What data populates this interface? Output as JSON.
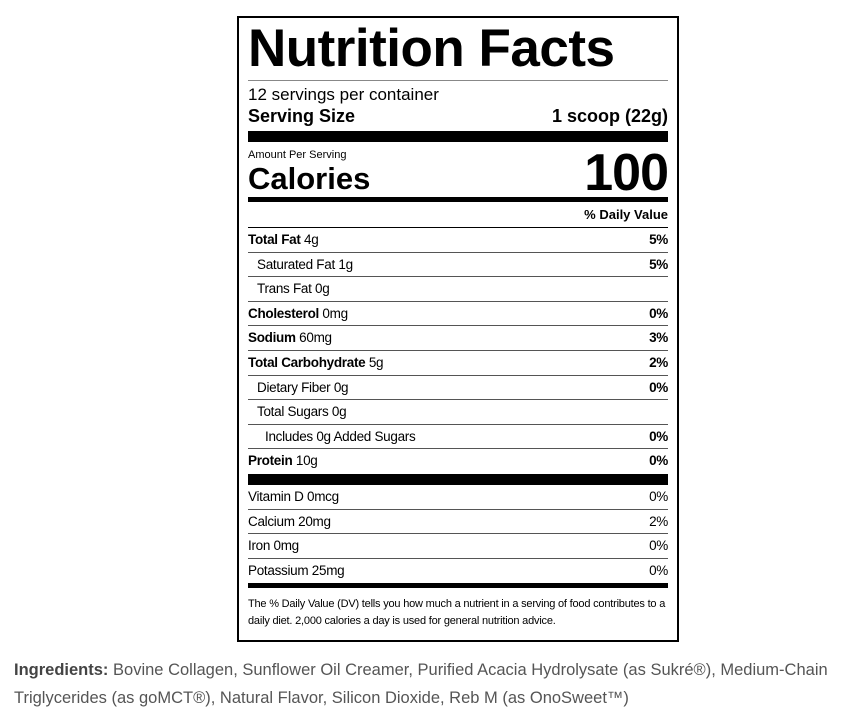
{
  "label": {
    "title": "Nutrition Facts",
    "servings": "12 servings per container",
    "serving_size": {
      "label": "Serving Size",
      "value": "1 scoop (22g)"
    },
    "amount_per_serving": "Amount Per Serving",
    "calories": {
      "label": "Calories",
      "value": 100
    },
    "dv_header": "% Daily Value",
    "nutrients": [
      {
        "name": "Total Fat",
        "amount": "4g",
        "dv": "5%"
      },
      {
        "name": "Saturated Fat",
        "amount": "1g",
        "dv": "5%"
      },
      {
        "name": "Trans Fat",
        "amount": "0g"
      },
      {
        "name": "Cholesterol",
        "amount": "0mg",
        "dv": "0%"
      },
      {
        "name": "Sodium",
        "amount": "60mg",
        "dv": "3%"
      },
      {
        "name": "Total Carbohydrate",
        "amount": "5g",
        "dv": "2%"
      },
      {
        "name": "Dietary Fiber",
        "amount": "0g",
        "dv": "0%"
      },
      {
        "name": "Total Sugars",
        "amount": "0g"
      },
      {
        "name": "Includes 0g Added Sugars",
        "dv": "0%"
      },
      {
        "name": "Protein",
        "amount": "10g",
        "dv": "0%"
      }
    ],
    "vitamins": [
      {
        "name": "Vitamin D",
        "amount": "0mcg",
        "dv": "0%"
      },
      {
        "name": "Calcium",
        "amount": "20mg",
        "dv": "2%"
      },
      {
        "name": "Iron",
        "amount": "0mg",
        "dv": "0%"
      },
      {
        "name": "Potassium",
        "amount": "25mg",
        "dv": "0%"
      }
    ],
    "footnote": "The % Daily Value (DV) tells you how much a nutrient in a serving of food contributes to a daily diet. 2,000 calories a day is used for general nutrition advice."
  },
  "ingredients": {
    "label": "Ingredients:",
    "text": "Bovine Collagen, Sunflower Oil Creamer, Purified Acacia Hydrolysate (as Sukré®), Medium-Chain Triglycerides (as goMCT®), Natural Flavor, Silicon Dioxide, Reb M (as OnoSweet™)"
  }
}
